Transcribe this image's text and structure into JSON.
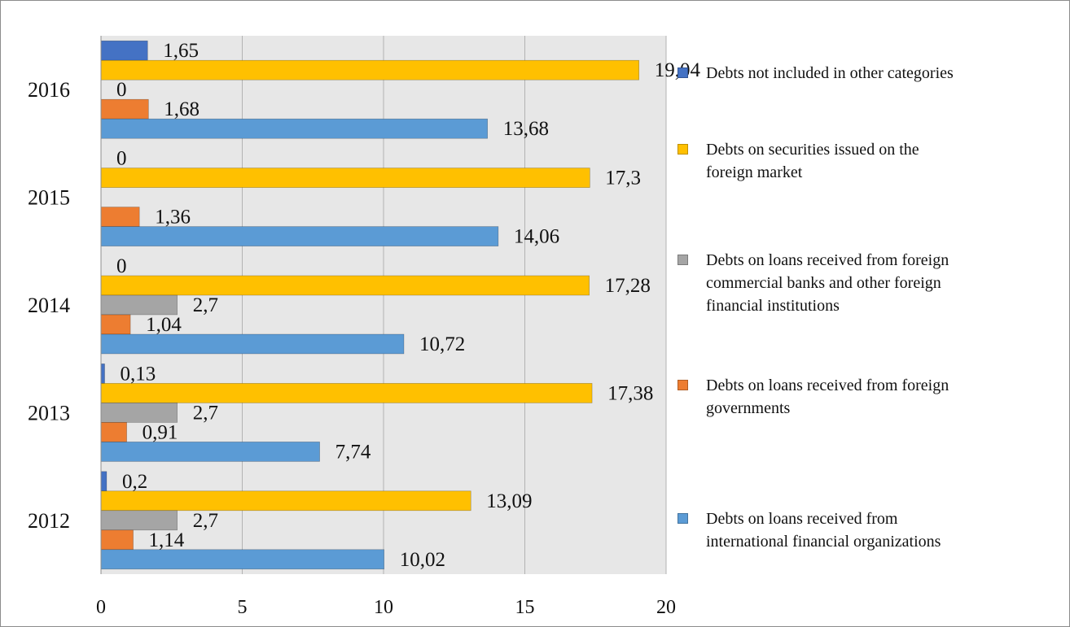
{
  "chart_data": {
    "type": "bar",
    "orientation": "horizontal",
    "categories": [
      "2012",
      "2013",
      "2014",
      "2015",
      "2016"
    ],
    "xlim": [
      0,
      20
    ],
    "xticks": [
      "0",
      "5",
      "10",
      "15",
      "20"
    ],
    "grid": true,
    "legend_position": "right",
    "series": [
      {
        "name": "Debts not included in other categories",
        "color": "#4472c4",
        "values": [
          0.2,
          0.13,
          0,
          0,
          1.65
        ],
        "labels": [
          "0,2",
          "0,13",
          "0",
          "0",
          "1,65"
        ]
      },
      {
        "name": "Debts on securities issued on the foreign market",
        "color": "#ffc000",
        "values": [
          13.09,
          17.38,
          17.28,
          17.3,
          19.04
        ],
        "labels": [
          "13,09",
          "17,38",
          "17,28",
          "17,3",
          "19,04"
        ]
      },
      {
        "name": "Debts on loans received from foreign commercial banks and other foreign financial institutions",
        "color": "#a5a5a5",
        "values": [
          2.7,
          2.7,
          2.7,
          null,
          0
        ],
        "labels": [
          "2,7",
          "2,7",
          "2,7",
          null,
          "0"
        ]
      },
      {
        "name": "Debts on loans received from foreign governments",
        "color": "#ed7d31",
        "values": [
          1.14,
          0.91,
          1.04,
          1.36,
          1.68
        ],
        "labels": [
          "1,14",
          "0,91",
          "1,04",
          "1,36",
          "1,68"
        ]
      },
      {
        "name": "Debts on loans received from international financial organizations",
        "color": "#5b9bd5",
        "values": [
          10.02,
          7.74,
          10.72,
          14.06,
          13.68
        ],
        "labels": [
          "10,02",
          "7,74",
          "10,72",
          "14,06",
          "13,68"
        ]
      }
    ]
  },
  "legend": {
    "items": [
      {
        "label": "Debts not included in other categories",
        "color": "#4472c4"
      },
      {
        "label": "Debts on securities issued on the\nforeign market",
        "color": "#ffc000"
      },
      {
        "label": "Debts on loans received from foreign\ncommercial banks and other foreign\nfinancial institutions",
        "color": "#a5a5a5"
      },
      {
        "label": "Debts on loans received from foreign\ngovernments",
        "color": "#ed7d31"
      },
      {
        "label": "Debts on loans received from\ninternational financial organizations",
        "color": "#5b9bd5"
      }
    ]
  }
}
